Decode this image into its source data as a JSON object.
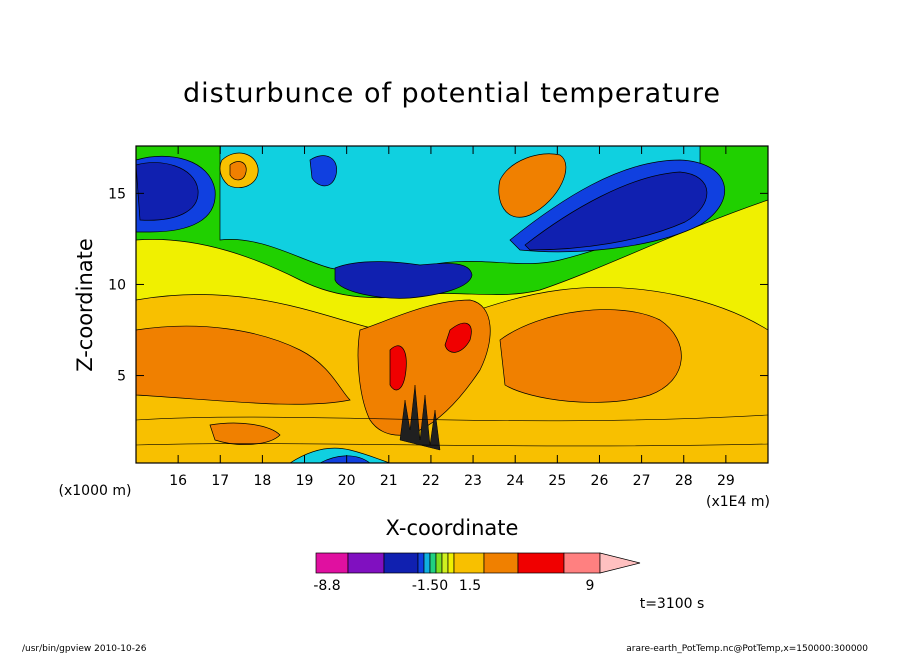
{
  "chart_data": {
    "type": "heatmap",
    "title": "disturbunce of potential temperature",
    "xlabel": "X-coordinate",
    "ylabel": "Z-coordinate",
    "x_unit_left": "(x1000 m)",
    "x_unit_right": "(x1E4 m)",
    "x_ticks": [
      16,
      17,
      18,
      19,
      20,
      21,
      22,
      23,
      24,
      25,
      26,
      27,
      28,
      29
    ],
    "y_ticks": [
      5,
      10,
      15
    ],
    "xlim": [
      15.0,
      30.0
    ],
    "ylim": [
      0.2,
      17.6
    ],
    "colorbar": {
      "colors": [
        "#e010a0",
        "#8010c0",
        "#1020b0",
        "#1040e0",
        "#10b0e0",
        "#20d080",
        "#80e020",
        "#d0f020",
        "#f0f000",
        "#f8c000",
        "#f08000",
        "#f00000",
        "#ff8080",
        "#ffc0c0"
      ],
      "tick_labels": [
        "-8.8",
        "-1.50",
        "1.5",
        "9"
      ]
    },
    "annotation_time": "t=3100 s",
    "contour_features": [
      {
        "label": "upper-left negative cell",
        "x": 16.5,
        "z": 15.5,
        "value": -6.0
      },
      {
        "label": "upper-right negative cell",
        "x": 26.5,
        "z": 15.0,
        "value": -6.0
      },
      {
        "label": "central negative band",
        "x": 22.0,
        "z": 10.5,
        "value": -5.0
      },
      {
        "label": "upper positive cell",
        "x": 25.0,
        "z": 15.5,
        "value": 4.0
      },
      {
        "label": "upper small positive cell",
        "x": 17.5,
        "z": 16.0,
        "value": 3.0
      },
      {
        "label": "lower-left positive lobe",
        "x": 19.0,
        "z": 6.0,
        "value": 3.0
      },
      {
        "label": "lower-right positive lobe",
        "x": 25.5,
        "z": 6.0,
        "value": 4.0
      },
      {
        "label": "central updraft maximum",
        "x": 21.2,
        "z": 5.5,
        "value": 7.5
      }
    ]
  },
  "footer": {
    "program": "/usr/bin/gpview   2010-10-26",
    "source": "arare-earth_PotTemp.nc@PotTemp,x=150000:300000"
  }
}
